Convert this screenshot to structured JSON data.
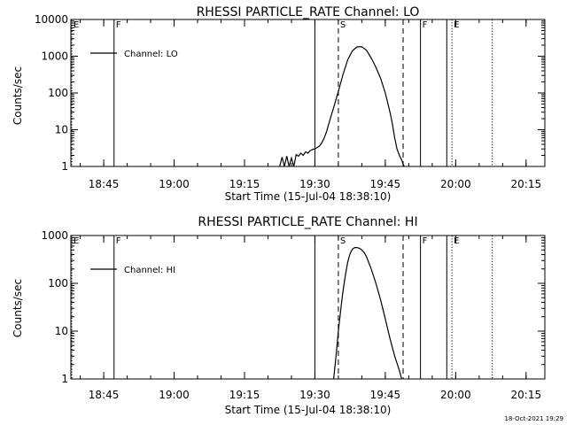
{
  "footer": {
    "timestamp": "18-Oct-2021 19:29"
  },
  "chart_data": [
    {
      "type": "line",
      "title": "RHESSI PARTICLE_RATE Channel: LO",
      "xlabel": "Start Time (15-Jul-04 18:38:10)",
      "ylabel": "Counts/sec",
      "xlim_minutes_after_1838": [
        0,
        101
      ],
      "ylim": [
        1,
        10000
      ],
      "yscale": "log",
      "x_ticks": [
        {
          "label": "18:45",
          "min": 7
        },
        {
          "label": "19:00",
          "min": 22
        },
        {
          "label": "19:15",
          "min": 37
        },
        {
          "label": "19:30",
          "min": 52
        },
        {
          "label": "19:45",
          "min": 67
        },
        {
          "label": "20:00",
          "min": 82
        },
        {
          "label": "20:15",
          "min": 97
        }
      ],
      "y_ticks": [
        "1",
        "10",
        "100",
        "1000",
        "10000"
      ],
      "y_tick_values": [
        1,
        10,
        100,
        1000,
        10000
      ],
      "legend": {
        "label": "Channel: LO",
        "placement": "top-left"
      },
      "markers": [
        {
          "label": "E",
          "min": 0.2,
          "style": "dotted"
        },
        {
          "label": "F",
          "min": 9.2,
          "style": "solid"
        },
        {
          "label": "",
          "min": 52.0,
          "style": "solid"
        },
        {
          "label": "S",
          "min": 57.0,
          "style": "dashed"
        },
        {
          "label": "",
          "min": 70.8,
          "style": "dashed"
        },
        {
          "label": "F",
          "min": 74.5,
          "style": "solid"
        },
        {
          "label": "",
          "min": 80.1,
          "style": "solid"
        },
        {
          "label": "E",
          "min": 81.2,
          "style": "dotted"
        },
        {
          "label": "",
          "min": 89.8,
          "style": "dotted"
        }
      ],
      "series": [
        {
          "x_min": [
            44.5,
            45.0,
            45.5,
            46.0,
            46.5,
            47.0,
            47.5,
            48.0,
            48.5,
            49.0,
            49.5,
            50.0,
            50.5,
            51.0,
            51.5,
            52.0,
            52.5,
            53.0,
            53.5,
            54.0,
            54.5,
            55.0,
            55.5,
            56.0,
            57.0,
            58.0,
            59.0,
            60.0,
            61.0,
            62.0,
            63.0,
            64.0,
            65.0,
            66.0,
            67.0,
            68.0,
            68.5,
            69.0,
            69.5,
            70.0,
            70.5,
            71.0
          ],
          "values": [
            1,
            1.8,
            1,
            1.9,
            1,
            1.7,
            1,
            2.1,
            1.9,
            2.3,
            2.0,
            2.5,
            2.3,
            2.7,
            2.9,
            3.0,
            3.3,
            3.6,
            4.5,
            6,
            9,
            15,
            25,
            40,
            110,
            320,
            800,
            1400,
            1800,
            1800,
            1450,
            900,
            500,
            250,
            100,
            30,
            15,
            6,
            3,
            2,
            1.5,
            1
          ]
        }
      ]
    },
    {
      "type": "line",
      "title": "RHESSI PARTICLE_RATE Channel: HI",
      "xlabel": "Start Time (15-Jul-04 18:38:10)",
      "ylabel": "Counts/sec",
      "xlim_minutes_after_1838": [
        0,
        101
      ],
      "ylim": [
        1,
        1000
      ],
      "yscale": "log",
      "x_ticks": [
        {
          "label": "18:45",
          "min": 7
        },
        {
          "label": "19:00",
          "min": 22
        },
        {
          "label": "19:15",
          "min": 37
        },
        {
          "label": "19:30",
          "min": 52
        },
        {
          "label": "19:45",
          "min": 67
        },
        {
          "label": "20:00",
          "min": 82
        },
        {
          "label": "20:15",
          "min": 97
        }
      ],
      "y_ticks": [
        "1",
        "10",
        "100",
        "1000"
      ],
      "y_tick_values": [
        1,
        10,
        100,
        1000
      ],
      "legend": {
        "label": "Channel: HI",
        "placement": "top-left"
      },
      "markers": [
        {
          "label": "E",
          "min": 0.2,
          "style": "dotted"
        },
        {
          "label": "F",
          "min": 9.2,
          "style": "solid"
        },
        {
          "label": "",
          "min": 52.0,
          "style": "solid"
        },
        {
          "label": "S",
          "min": 57.0,
          "style": "dashed"
        },
        {
          "label": "",
          "min": 70.8,
          "style": "dashed"
        },
        {
          "label": "F",
          "min": 74.5,
          "style": "solid"
        },
        {
          "label": "",
          "min": 80.1,
          "style": "solid"
        },
        {
          "label": "E",
          "min": 81.2,
          "style": "dotted"
        },
        {
          "label": "",
          "min": 89.8,
          "style": "dotted"
        }
      ],
      "series": [
        {
          "x_min": [
            56.0,
            56.5,
            57.0,
            57.5,
            58.0,
            58.5,
            59.0,
            59.5,
            60.0,
            60.5,
            61.0,
            61.5,
            62.0,
            62.5,
            63.0,
            64.0,
            65.0,
            66.0,
            67.0,
            68.0,
            69.0,
            70.0,
            70.5
          ],
          "values": [
            1,
            3,
            10,
            28,
            70,
            150,
            280,
            420,
            520,
            560,
            560,
            540,
            500,
            440,
            360,
            200,
            100,
            45,
            18,
            7,
            3,
            1.5,
            1
          ]
        }
      ]
    }
  ]
}
